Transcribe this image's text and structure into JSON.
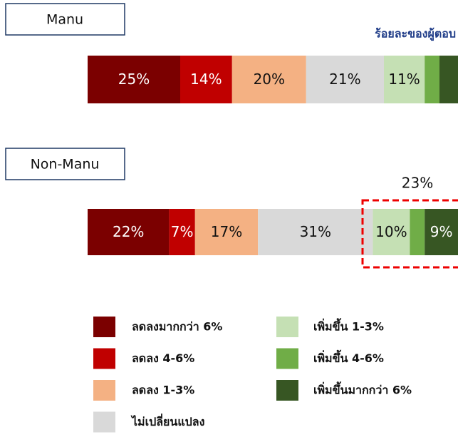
{
  "chart_data": {
    "type": "stacked_bar_horizontal",
    "subtitle": "ร้อยละของผู้ตอบ",
    "annotation": "23%",
    "categories": [
      "Manu",
      "Non-Manu"
    ],
    "xlim": [
      0,
      100
    ],
    "series": [
      {
        "name": "ลดลงมากกว่า 6%",
        "color": "#7b0000",
        "values": [
          25,
          22
        ],
        "value_labels": [
          "25%",
          "22%"
        ]
      },
      {
        "name": "ลดลง 4-6%",
        "color": "#c00000",
        "values": [
          14,
          7
        ],
        "value_labels": [
          "14%",
          "7%"
        ]
      },
      {
        "name": "ลดลง 1-3%",
        "color": "#f4b183",
        "values": [
          20,
          17
        ],
        "value_labels": [
          "20%",
          "17%"
        ]
      },
      {
        "name": "ไม่เปลี่ยนแปลง",
        "color": "#d9d9d9",
        "values": [
          21,
          31
        ],
        "value_labels": [
          "21%",
          "31%"
        ]
      },
      {
        "name": "เพิ่มขึ้น 1-3%",
        "color": "#c5e0b4",
        "values": [
          11,
          10
        ],
        "value_labels": [
          "11%",
          "10%"
        ]
      },
      {
        "name": "เพิ่มขึ้น 4-6%",
        "color": "#70ad47",
        "values": [
          4,
          4
        ],
        "value_labels": [
          null,
          null
        ]
      },
      {
        "name": "เพิ่มขึ้นมากกว่า 6%",
        "color": "#375623",
        "values": [
          5,
          9
        ],
        "value_labels": [
          null,
          "9%"
        ]
      }
    ]
  }
}
